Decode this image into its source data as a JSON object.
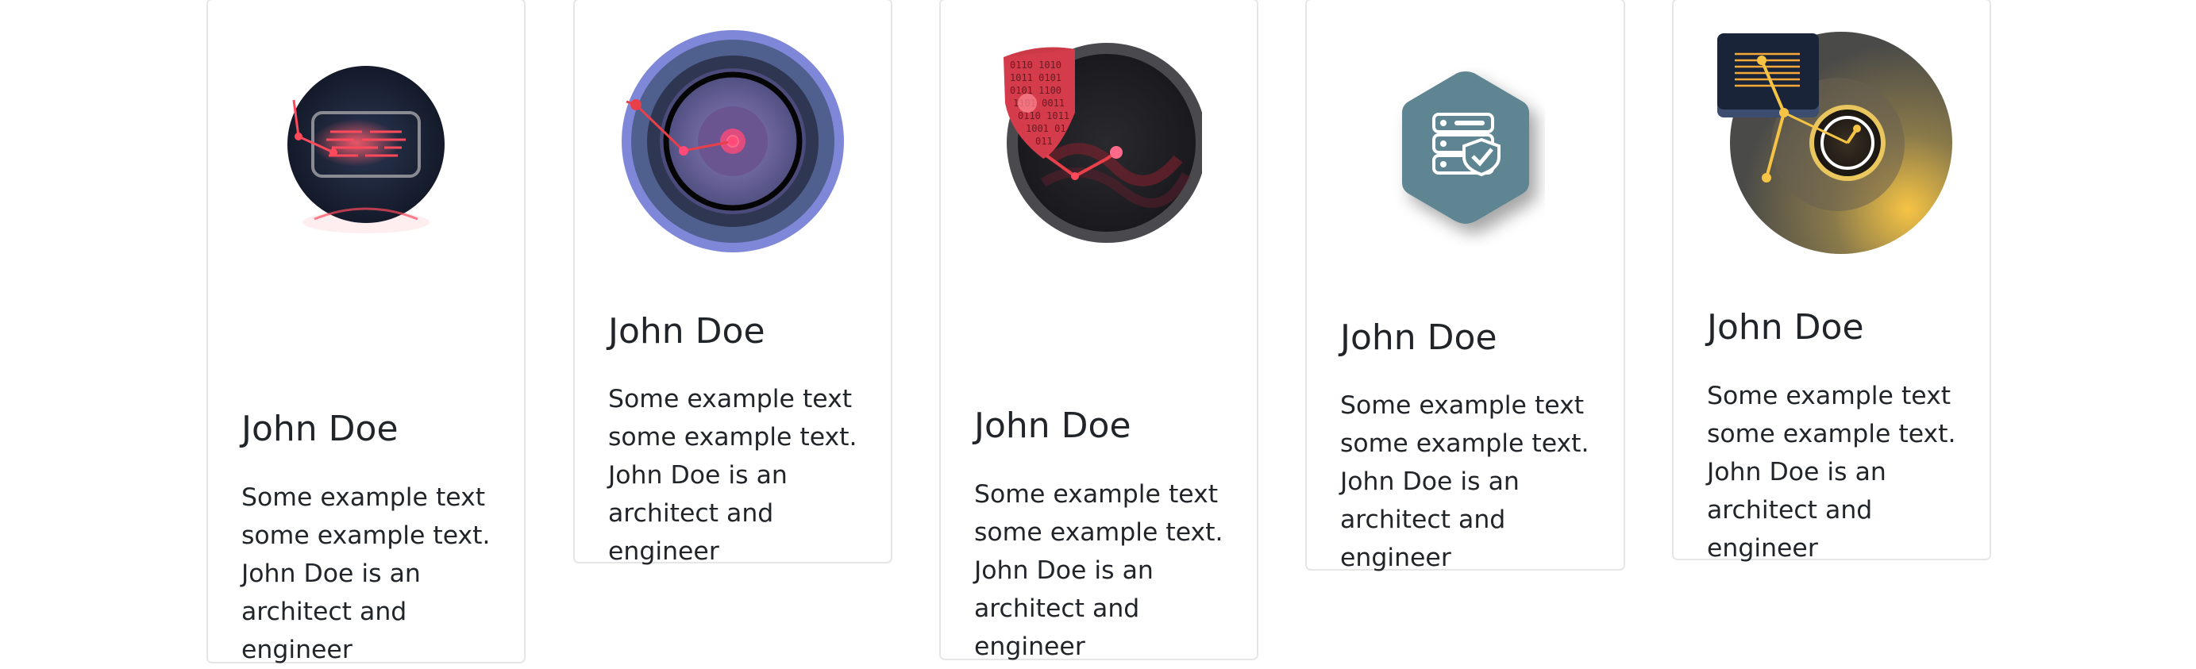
{
  "cards": [
    {
      "title": "John Doe",
      "text": "Some example text some example text. John Doe is an architect and engineer",
      "icon": "circuit-chip-icon"
    },
    {
      "title": "John Doe",
      "text": "Some example text some example text. John Doe is an architect and engineer",
      "icon": "radar-lens-icon"
    },
    {
      "title": "John Doe",
      "text": "Some example text some example text. John Doe is an architect and engineer",
      "icon": "binary-shield-icon"
    },
    {
      "title": "John Doe",
      "text": "Some example text some example text. John Doe is an architect and engineer",
      "icon": "secure-server-icon"
    },
    {
      "title": "John Doe",
      "text": "Some example text some example text. John Doe is an architect and engineer",
      "icon": "gold-dial-icon"
    }
  ],
  "colors": {
    "border": "#e6e6e6",
    "text": "#212529",
    "red_accent": "#e8404a",
    "hex_teal": "#5e8592",
    "lens_blue": "#7f88d8",
    "gold": "#f6c445"
  }
}
